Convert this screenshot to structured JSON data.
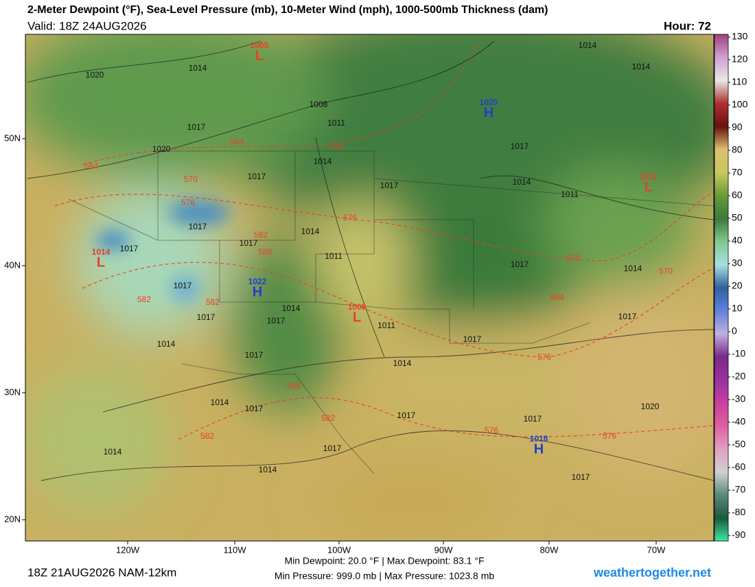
{
  "header": {
    "title": "2-Meter Dewpoint (°F), Sea-Level Pressure (mb), 10-Meter Wind (mph), 1000-500mb Thickness (dam)",
    "valid": "Valid: 18Z 24AUG2026",
    "hour": "Hour: 72"
  },
  "colorbar": {
    "ticks": [
      130,
      120,
      110,
      100,
      90,
      80,
      70,
      60,
      50,
      40,
      30,
      20,
      10,
      0,
      -10,
      -20,
      -30,
      -40,
      -50,
      -60,
      -70,
      -80,
      -90
    ]
  },
  "axes": {
    "lat_labels": [
      "50N",
      "40N",
      "30N",
      "20N"
    ],
    "lon_labels": [
      "120W",
      "110W",
      "100W",
      "90W",
      "80W",
      "70W"
    ]
  },
  "centers": [
    {
      "letter": "L",
      "value": "1005"
    },
    {
      "letter": "H",
      "value": "1020"
    },
    {
      "letter": "L",
      "value": "1011"
    },
    {
      "letter": "L",
      "value": "1014"
    },
    {
      "letter": "H",
      "value": "1022"
    },
    {
      "letter": "L",
      "value": "1009"
    },
    {
      "letter": "H",
      "value": "1018"
    }
  ],
  "isobar_labels": [
    "1020",
    "1014",
    "1008",
    "1011",
    "1017",
    "1020",
    "1014",
    "1017",
    "1017",
    "1014",
    "1011",
    "1017",
    "1014",
    "1017",
    "1017",
    "1011",
    "1017",
    "1014",
    "1017",
    "1014",
    "1017",
    "1017",
    "1011",
    "1017",
    "1014",
    "1017",
    "1017",
    "1014",
    "1014",
    "1017",
    "1017",
    "1017",
    "1020",
    "1014",
    "1017",
    "1014",
    "1017",
    "1014",
    "1014",
    "1017"
  ],
  "thickness_labels": [
    "564",
    "576",
    "564",
    "570",
    "576",
    "576",
    "582",
    "588",
    "582",
    "582",
    "558",
    "564",
    "570",
    "576",
    "588",
    "582",
    "582",
    "576",
    "576"
  ],
  "footer": {
    "run": "18Z 21AUG2026 NAM-12km",
    "dewpoint": "Min Dewpoint: 20.0 °F | Max Dewpoint: 83.1 °F",
    "pressure": "Min Pressure: 999.0 mb | Max Pressure: 1023.8 mb",
    "site": "weathertogether.net"
  }
}
